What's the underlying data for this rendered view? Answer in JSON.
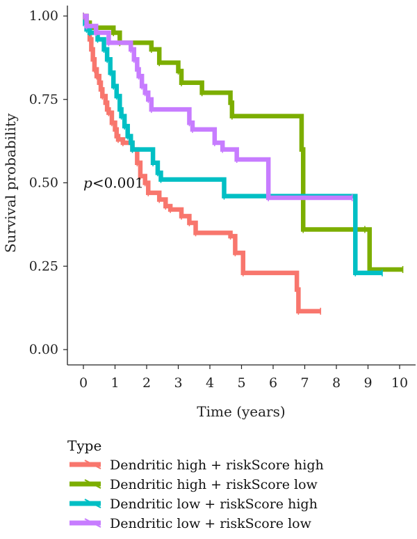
{
  "chart_data": {
    "type": "line",
    "subtype": "kaplan-meier",
    "xlabel": "Time (years)",
    "ylabel": "Survival probability",
    "xlim": [
      0,
      10
    ],
    "ylim": [
      0,
      1
    ],
    "xticks": [
      0,
      1,
      2,
      3,
      4,
      5,
      6,
      7,
      8,
      9,
      10
    ],
    "xtick_labels": [
      "0",
      "1",
      "2",
      "3",
      "4",
      "5",
      "6",
      "7",
      "8",
      "9",
      "10"
    ],
    "yticks": [
      0,
      0.25,
      0.5,
      0.75,
      1.0
    ],
    "ytick_labels": [
      "0.00",
      "0.25",
      "0.50",
      "0.75",
      "1.00"
    ],
    "grid": false,
    "annotation": {
      "p_symbol": "p",
      "p_rest": "<0.001",
      "x": 0.0,
      "y": 0.485
    },
    "legend": {
      "title": "Type",
      "placement": "bottom",
      "entries": [
        "Dendritic high + riskScore high",
        "Dendritic high + riskScore low",
        "Dendritic low + riskScore high",
        "Dendritic low + riskScore low"
      ]
    },
    "series": [
      {
        "name": "Dendritic high + riskScore high",
        "color": "#F8766D",
        "points": [
          [
            0,
            1.0
          ],
          [
            0.08,
            0.98
          ],
          [
            0.15,
            0.96
          ],
          [
            0.2,
            0.93
          ],
          [
            0.25,
            0.9
          ],
          [
            0.3,
            0.87
          ],
          [
            0.35,
            0.84
          ],
          [
            0.42,
            0.82
          ],
          [
            0.5,
            0.8
          ],
          [
            0.55,
            0.78
          ],
          [
            0.6,
            0.76
          ],
          [
            0.7,
            0.74
          ],
          [
            0.75,
            0.72
          ],
          [
            0.8,
            0.71
          ],
          [
            0.9,
            0.68
          ],
          [
            1.0,
            0.66
          ],
          [
            1.05,
            0.64
          ],
          [
            1.1,
            0.63
          ],
          [
            1.25,
            0.62
          ],
          [
            1.55,
            0.6
          ],
          [
            1.7,
            0.56
          ],
          [
            1.8,
            0.52
          ],
          [
            1.95,
            0.5
          ],
          [
            2.05,
            0.47
          ],
          [
            2.4,
            0.45
          ],
          [
            2.6,
            0.43
          ],
          [
            2.75,
            0.42
          ],
          [
            3.1,
            0.4
          ],
          [
            3.35,
            0.38
          ],
          [
            3.55,
            0.35
          ],
          [
            4.65,
            0.34
          ],
          [
            4.8,
            0.29
          ],
          [
            5.05,
            0.23
          ],
          [
            6.75,
            0.18
          ],
          [
            6.8,
            0.115
          ],
          [
            7.5,
            0.115
          ]
        ]
      },
      {
        "name": "Dendritic high + riskScore low",
        "color": "#7CAE00",
        "points": [
          [
            0,
            1.0
          ],
          [
            0.1,
            0.98
          ],
          [
            0.2,
            0.965
          ],
          [
            0.95,
            0.95
          ],
          [
            1.15,
            0.92
          ],
          [
            2.15,
            0.9
          ],
          [
            2.4,
            0.86
          ],
          [
            3.0,
            0.835
          ],
          [
            3.1,
            0.8
          ],
          [
            3.75,
            0.77
          ],
          [
            4.65,
            0.74
          ],
          [
            4.7,
            0.7
          ],
          [
            6.9,
            0.6
          ],
          [
            6.95,
            0.36
          ],
          [
            8.9,
            0.36
          ],
          [
            9.05,
            0.24
          ],
          [
            10.1,
            0.24
          ]
        ]
      },
      {
        "name": "Dendritic low + riskScore high",
        "color": "#00BFC4",
        "points": [
          [
            0,
            0.98
          ],
          [
            0.1,
            0.96
          ],
          [
            0.2,
            0.95
          ],
          [
            0.45,
            0.93
          ],
          [
            0.65,
            0.9
          ],
          [
            0.75,
            0.87
          ],
          [
            0.85,
            0.83
          ],
          [
            0.95,
            0.79
          ],
          [
            1.05,
            0.76
          ],
          [
            1.15,
            0.72
          ],
          [
            1.2,
            0.7
          ],
          [
            1.3,
            0.67
          ],
          [
            1.4,
            0.64
          ],
          [
            1.5,
            0.62
          ],
          [
            1.55,
            0.6
          ],
          [
            2.2,
            0.56
          ],
          [
            2.35,
            0.53
          ],
          [
            2.45,
            0.51
          ],
          [
            4.45,
            0.46
          ],
          [
            8.6,
            0.23
          ],
          [
            9.45,
            0.23
          ]
        ]
      },
      {
        "name": "Dendritic low + riskScore low",
        "color": "#C77CFF",
        "points": [
          [
            0,
            1.0
          ],
          [
            0.1,
            0.97
          ],
          [
            0.4,
            0.95
          ],
          [
            0.8,
            0.92
          ],
          [
            1.5,
            0.9
          ],
          [
            1.6,
            0.87
          ],
          [
            1.7,
            0.84
          ],
          [
            1.75,
            0.82
          ],
          [
            1.85,
            0.79
          ],
          [
            1.95,
            0.77
          ],
          [
            2.05,
            0.75
          ],
          [
            2.15,
            0.72
          ],
          [
            3.35,
            0.68
          ],
          [
            3.45,
            0.66
          ],
          [
            4.15,
            0.62
          ],
          [
            4.4,
            0.6
          ],
          [
            4.85,
            0.57
          ],
          [
            5.85,
            0.455
          ],
          [
            8.5,
            0.455
          ]
        ]
      }
    ]
  }
}
